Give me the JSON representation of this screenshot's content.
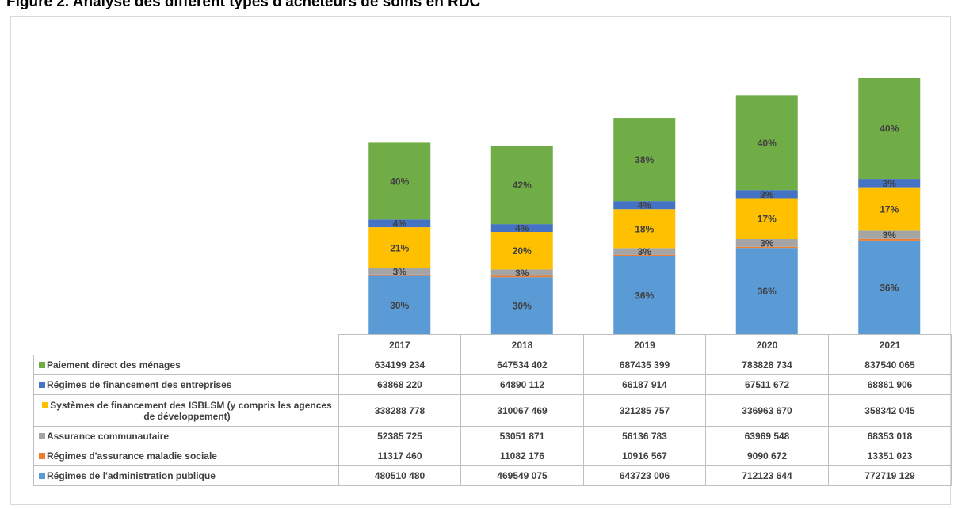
{
  "title": "Figure 2. Analyse des différent types d'acheteurs de soins en RDC",
  "chart_data": {
    "type": "bar",
    "stacked": true,
    "title": "",
    "xlabel": "",
    "ylabel": "",
    "categories": [
      "2017",
      "2018",
      "2019",
      "2020",
      "2021"
    ],
    "series": [
      {
        "name": "Régimes de l'administration publique",
        "color": "#5b9bd5",
        "values": [
          480510480,
          469549075,
          643723006,
          712123644,
          772719129
        ],
        "labels": [
          "30%",
          "30%",
          "36%",
          "36%",
          "36%"
        ],
        "display_values": [
          "480510 480",
          "469549 075",
          "643723 006",
          "712123 644",
          "772719 129"
        ]
      },
      {
        "name": "Régimes d'assurance maladie sociale",
        "color": "#ed7d31",
        "values": [
          11317460,
          11082176,
          10916567,
          9090672,
          13351023
        ],
        "labels": [
          "",
          "",
          "",
          "",
          ""
        ],
        "display_values": [
          "11317 460",
          "11082 176",
          "10916 567",
          "9090 672",
          "13351 023"
        ]
      },
      {
        "name": "Assurance communautaire",
        "color": "#a5a5a5",
        "values": [
          52385725,
          53051871,
          56136783,
          63969548,
          68353018
        ],
        "labels": [
          "3%",
          "3%",
          "3%",
          "3%",
          "3%"
        ],
        "display_values": [
          "52385 725",
          "53051 871",
          "56136 783",
          "63969 548",
          "68353 018"
        ]
      },
      {
        "name": "Systèmes de financement des ISBLSM (y compris les agences de développement)",
        "color": "#ffc000",
        "values": [
          338288778,
          310067469,
          321285757,
          336963670,
          358342045
        ],
        "labels": [
          "21%",
          "20%",
          "18%",
          "17%",
          "17%"
        ],
        "display_values": [
          "338288 778",
          "310067 469",
          "321285 757",
          "336963 670",
          "358342 045"
        ]
      },
      {
        "name": "Régimes de financement des entreprises",
        "color": "#4472c4",
        "values": [
          63868220,
          64890112,
          66187914,
          67511672,
          68861906
        ],
        "labels": [
          "4%",
          "4%",
          "4%",
          "3%",
          "3%"
        ],
        "display_values": [
          "63868 220",
          "64890 112",
          "66187 914",
          "67511 672",
          "68861 906"
        ]
      },
      {
        "name": "Paiement direct des ménages",
        "color": "#70ad47",
        "values": [
          634199234,
          647534402,
          687435399,
          783828734,
          837540065
        ],
        "labels": [
          "40%",
          "42%",
          "38%",
          "40%",
          "40%"
        ],
        "display_values": [
          "634199 234",
          "647534 402",
          "687435 399",
          "783828 734",
          "837540 065"
        ]
      }
    ],
    "table_row_order": [
      5,
      4,
      3,
      2,
      1,
      0
    ],
    "legend": "data-table",
    "grid": false
  }
}
